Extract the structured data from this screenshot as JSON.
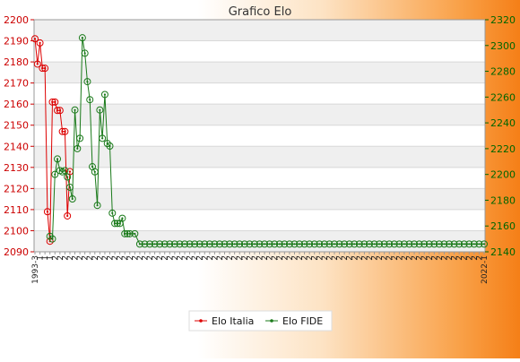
{
  "chart_data": {
    "type": "line",
    "title": "Grafico Elo",
    "y_left": {
      "min": 2090,
      "max": 2200,
      "step": 10,
      "color": "#cc0000"
    },
    "y_right": {
      "min": 2140,
      "max": 2320,
      "step": 20,
      "color": "#006600"
    },
    "x_count": 91,
    "x_tick_labels": [
      "1993-3",
      "1",
      "1",
      "1",
      "2",
      "2",
      "2",
      "2",
      "2",
      "2",
      "2",
      "2",
      "2",
      "2",
      "2",
      "2",
      "2",
      "2",
      "2",
      "2",
      "2",
      "2",
      "2",
      "2",
      "2",
      "2",
      "2",
      "2",
      "2",
      "2",
      "2",
      "2",
      "2",
      "2",
      "2",
      "2",
      "2",
      "2",
      "2",
      "2",
      "2",
      "2",
      "2",
      "2",
      "2",
      "2",
      "2",
      "2",
      "2",
      "2",
      "2",
      "2",
      "2",
      "2",
      "2",
      "2",
      "2",
      "2",
      "2",
      "2",
      "2",
      "2",
      "2",
      "2",
      "2",
      "2",
      "2",
      "2",
      "2",
      "2",
      "2",
      "2",
      "2",
      "2",
      "2",
      "2",
      "2",
      "2",
      "2",
      "2",
      "2",
      "2",
      "2",
      "2",
      "2",
      "2",
      "2",
      "2",
      "2",
      "2",
      "2022-1"
    ],
    "grid": true,
    "legend_position": "bottom",
    "series": [
      {
        "name": "Elo Italia",
        "axis": "left",
        "color": "#dd0000",
        "x": [
          0,
          0.5,
          1,
          1.5,
          2,
          2.5,
          3,
          3.5,
          4,
          4.5,
          5,
          5.5,
          6,
          6.5,
          7
        ],
        "values": [
          2191,
          2179,
          2189,
          2177,
          2177,
          2109,
          2095,
          2161,
          2161,
          2157,
          2157,
          2147,
          2147,
          2107,
          2128
        ]
      },
      {
        "name": "Elo FIDE",
        "axis": "right",
        "color": "#1a7a1a",
        "x": [
          3,
          3.5,
          4,
          4.5,
          5,
          5.5,
          6,
          6.5,
          7,
          7.5,
          8,
          8.5,
          9,
          9.5,
          10,
          10.5,
          11,
          11.5,
          12,
          12.5,
          13,
          13.5,
          14,
          14.5,
          15,
          15.5,
          16,
          16.5,
          17,
          17.5,
          18,
          18.5,
          19,
          20,
          21,
          22,
          23,
          24,
          25,
          26,
          27,
          28,
          29,
          30,
          31,
          32,
          33,
          34,
          35,
          36,
          37,
          38,
          39,
          40,
          41,
          42,
          43,
          44,
          45,
          46,
          47,
          48,
          49,
          50,
          51,
          52,
          53,
          54,
          55,
          56,
          57,
          58,
          59,
          60,
          61,
          62,
          63,
          64,
          65,
          66,
          67,
          68,
          69,
          70,
          71,
          72,
          73,
          74,
          75,
          76,
          77,
          78,
          79,
          80,
          81,
          82,
          83,
          84,
          85,
          86,
          87,
          88,
          89,
          90
        ],
        "values": [
          2152,
          2150,
          2200,
          2212,
          2203,
          2202,
          2203,
          2198,
          2190,
          2181,
          2250,
          2220,
          2228,
          2306,
          2294,
          2272,
          2258,
          2206,
          2202,
          2176,
          2250,
          2228,
          2262,
          2224,
          2222,
          2170,
          2162,
          2162,
          2162,
          2166,
          2154,
          2154,
          2154,
          2154,
          2146,
          2146,
          2146,
          2146,
          2146,
          2146,
          2146,
          2146,
          2146,
          2146,
          2146,
          2146,
          2146,
          2146,
          2146,
          2146,
          2146,
          2146,
          2146,
          2146,
          2146,
          2146,
          2146,
          2146,
          2146,
          2146,
          2146,
          2146,
          2146,
          2146,
          2146,
          2146,
          2146,
          2146,
          2146,
          2146,
          2146,
          2146,
          2146,
          2146,
          2146,
          2146,
          2146,
          2146,
          2146,
          2146,
          2146,
          2146,
          2146,
          2146,
          2146,
          2146,
          2146,
          2146,
          2146,
          2146,
          2146,
          2146,
          2146,
          2146,
          2146,
          2146,
          2146,
          2146,
          2146,
          2146,
          2146,
          2146,
          2146,
          2146
        ]
      }
    ]
  }
}
